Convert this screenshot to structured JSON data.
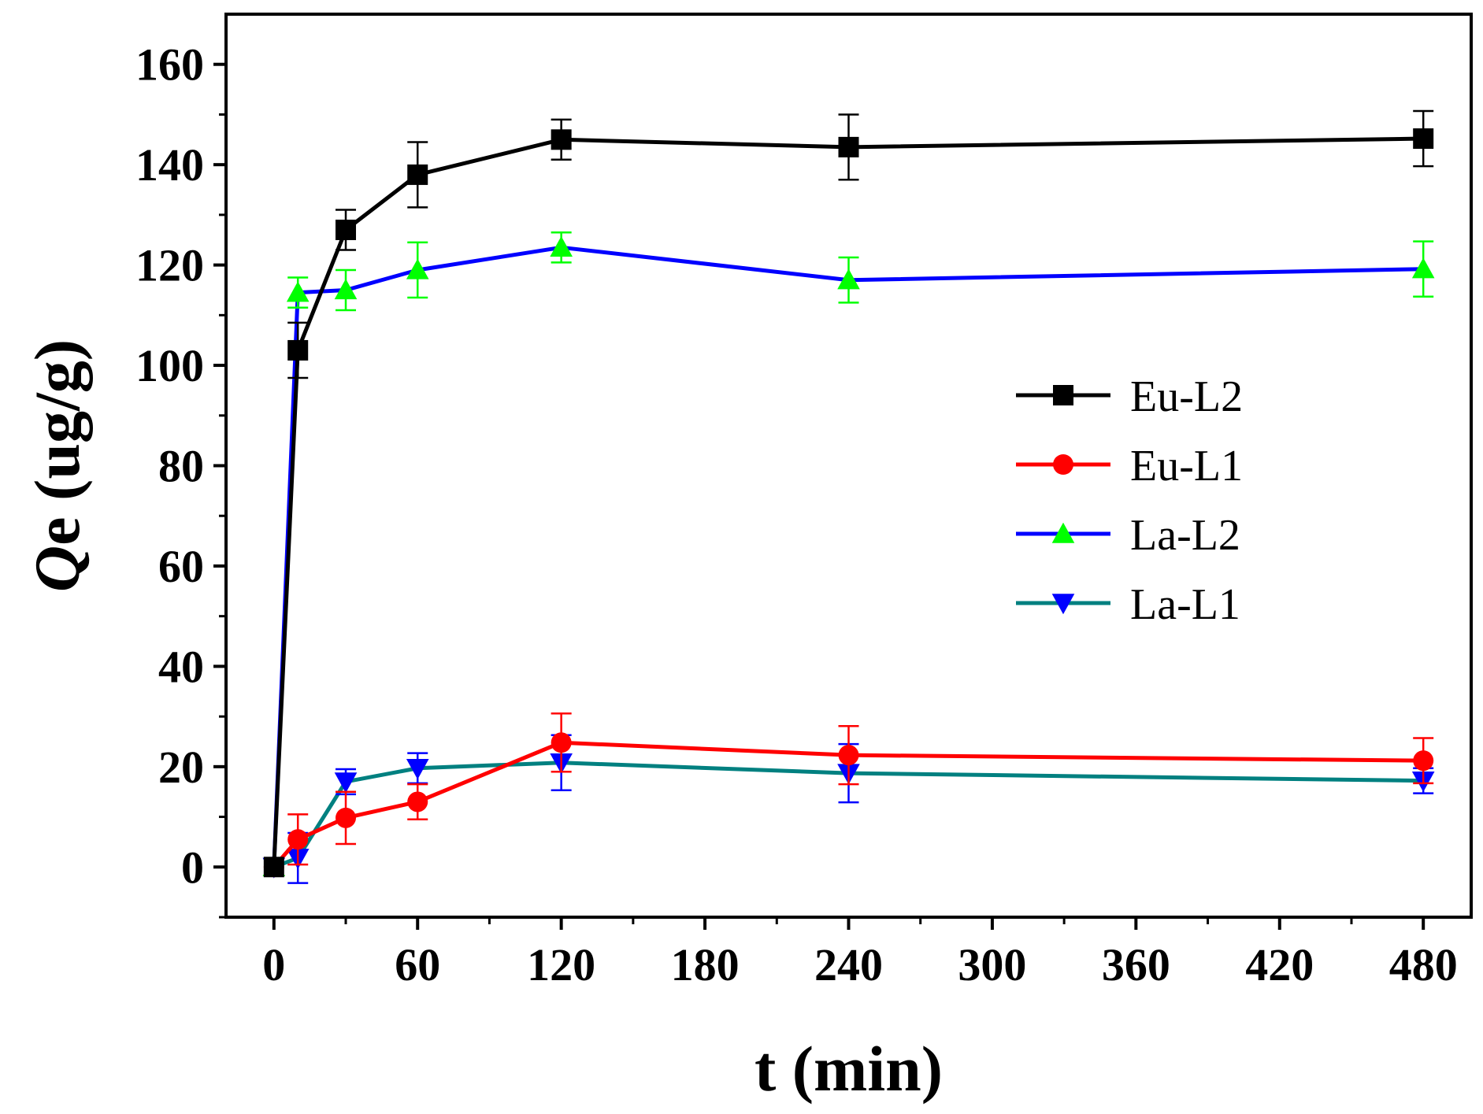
{
  "chart_data": {
    "type": "line",
    "title": "",
    "xlabel": "t (min)",
    "ylabel_italic": "Q",
    "ylabel_rest": "e (ug/g)",
    "xlim": [
      -20,
      500
    ],
    "ylim": [
      -10,
      170
    ],
    "xticks": [
      0,
      60,
      120,
      180,
      240,
      300,
      360,
      420,
      480
    ],
    "yticks": [
      0,
      20,
      40,
      60,
      80,
      100,
      120,
      140,
      160
    ],
    "x": [
      0,
      10,
      30,
      60,
      120,
      240,
      480
    ],
    "legend_position": "right-middle",
    "series": [
      {
        "name": "Eu-L2",
        "line_color": "#000000",
        "marker": "square",
        "marker_color": "#000000",
        "err_color": "#000000",
        "values": [
          0,
          103,
          127,
          138,
          145,
          143.5,
          145.2
        ],
        "errors": [
          0,
          5.5,
          4,
          6.5,
          4,
          6.5,
          5.5
        ]
      },
      {
        "name": "Eu-L1",
        "line_color": "#ff0000",
        "marker": "circle",
        "marker_color": "#ff0000",
        "err_color": "#ff0000",
        "values": [
          0,
          5.5,
          9.8,
          13,
          24.8,
          22.3,
          21.2
        ],
        "errors": [
          0,
          5,
          5.2,
          3.5,
          5.8,
          5.8,
          4.5
        ]
      },
      {
        "name": "La-L2",
        "line_color": "#0000ff",
        "marker": "triangle-up",
        "marker_color": "#00ff00",
        "err_color": "#00ff00",
        "values": [
          0,
          114.5,
          115,
          119,
          123.5,
          117,
          119.2
        ],
        "errors": [
          0,
          3,
          4,
          5.5,
          3,
          4.5,
          5.5
        ]
      },
      {
        "name": "La-L1",
        "line_color": "#008080",
        "marker": "triangle-down",
        "marker_color": "#0000ff",
        "err_color": "#0000ff",
        "values": [
          0,
          1.8,
          17,
          19.7,
          20.8,
          18.7,
          17.2
        ],
        "errors": [
          0,
          5,
          2.5,
          3,
          5.5,
          5.8,
          2.5
        ]
      }
    ]
  }
}
